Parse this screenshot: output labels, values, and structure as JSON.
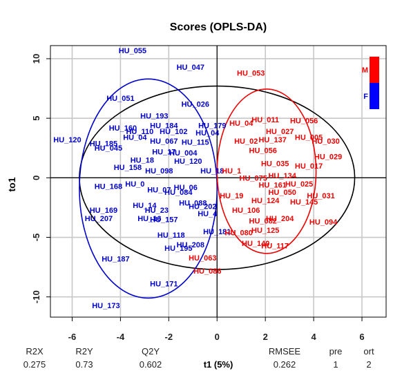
{
  "chart_data": {
    "type": "scatter",
    "title": "Scores (OPLS-DA)",
    "xlabel": "t1 (5%)",
    "ylabel": "to1",
    "xlim": [
      -6.9,
      7.0
    ],
    "ylim": [
      -11.7,
      11.1
    ],
    "x_ticks": [
      -6,
      -4,
      -2,
      0,
      2,
      4,
      6
    ],
    "y_ticks": [
      -10,
      -5,
      0,
      5,
      10
    ],
    "grid": true,
    "legend": [
      {
        "label": "M",
        "color": "#ff0000"
      },
      {
        "label": "F",
        "color": "#0000ff"
      }
    ],
    "series": [
      {
        "name": "F",
        "color": "#0000cd",
        "points": [
          {
            "label": "HU_055",
            "x": -3.5,
            "y": 10.7
          },
          {
            "label": "HU_047",
            "x": -1.1,
            "y": 9.3
          },
          {
            "label": "HU_051",
            "x": -4.0,
            "y": 6.7
          },
          {
            "label": "HU_026",
            "x": -0.9,
            "y": 6.2
          },
          {
            "label": "HU_193",
            "x": -2.6,
            "y": 5.2
          },
          {
            "label": "HU_184",
            "x": -2.2,
            "y": 4.4
          },
          {
            "label": "HU_160",
            "x": -3.9,
            "y": 4.2
          },
          {
            "label": "HU_110",
            "x": -3.2,
            "y": 3.9
          },
          {
            "label": "HU_102",
            "x": -1.8,
            "y": 3.9
          },
          {
            "label": "HU_179",
            "x": -0.2,
            "y": 4.4
          },
          {
            "label": "HU_04",
            "x": -0.4,
            "y": 3.8
          },
          {
            "label": "HU_120",
            "x": -6.2,
            "y": 3.2
          },
          {
            "label": "HU_185",
            "x": -4.7,
            "y": 2.9
          },
          {
            "label": "HU_04",
            "x": -3.4,
            "y": 3.4
          },
          {
            "label": "HU_067",
            "x": -2.2,
            "y": 3.1
          },
          {
            "label": "HU_115",
            "x": -0.9,
            "y": 3.0
          },
          {
            "label": "HU_045",
            "x": -4.5,
            "y": 2.5
          },
          {
            "label": "HU_17",
            "x": -2.2,
            "y": 2.2
          },
          {
            "label": "HU_004",
            "x": -1.4,
            "y": 2.1
          },
          {
            "label": "HU_18",
            "x": -3.1,
            "y": 1.5
          },
          {
            "label": "HU_120",
            "x": -1.2,
            "y": 1.4
          },
          {
            "label": "HU_158",
            "x": -3.7,
            "y": 0.9
          },
          {
            "label": "HU_098",
            "x": -2.4,
            "y": 0.6
          },
          {
            "label": "HU_18",
            "x": -0.2,
            "y": 0.6
          },
          {
            "label": "HU_168",
            "x": -4.5,
            "y": -0.7
          },
          {
            "label": "HU_0",
            "x": -3.4,
            "y": -0.5
          },
          {
            "label": "HU_07",
            "x": -2.4,
            "y": -1.0
          },
          {
            "label": "HU_084",
            "x": -1.6,
            "y": -1.2
          },
          {
            "label": "HU_06",
            "x": -1.3,
            "y": -0.8
          },
          {
            "label": "HU_088",
            "x": -1.0,
            "y": -2.1
          },
          {
            "label": "HU_14",
            "x": -3.0,
            "y": -2.3
          },
          {
            "label": "HU_23",
            "x": -2.5,
            "y": -2.7
          },
          {
            "label": "HU_202",
            "x": -0.6,
            "y": -2.4
          },
          {
            "label": "HU_169",
            "x": -4.7,
            "y": -2.7
          },
          {
            "label": "HU_207",
            "x": -4.9,
            "y": -3.4
          },
          {
            "label": "HU_157",
            "x": -2.2,
            "y": -3.5
          },
          {
            "label": "HU_16",
            "x": -2.8,
            "y": -3.4
          },
          {
            "label": "HU_4",
            "x": -0.4,
            "y": -3.0
          },
          {
            "label": "HU_118",
            "x": -1.9,
            "y": -4.8
          },
          {
            "label": "HU_181",
            "x": 0.0,
            "y": -4.5
          },
          {
            "label": "HU_208",
            "x": -1.1,
            "y": -5.6
          },
          {
            "label": "HU_195",
            "x": -1.6,
            "y": -5.9
          },
          {
            "label": "HU_187",
            "x": -4.2,
            "y": -6.8
          },
          {
            "label": "HU_171",
            "x": -2.2,
            "y": -8.9
          },
          {
            "label": "HU_173",
            "x": -4.6,
            "y": -10.7
          }
        ]
      },
      {
        "name": "M",
        "color": "#ee0000",
        "points": [
          {
            "label": "HU_053",
            "x": 1.4,
            "y": 8.8
          },
          {
            "label": "HU_011",
            "x": 2.0,
            "y": 4.9
          },
          {
            "label": "HU_04",
            "x": 1.0,
            "y": 4.6
          },
          {
            "label": "HU_056",
            "x": 3.6,
            "y": 4.8
          },
          {
            "label": "HU_027",
            "x": 2.6,
            "y": 3.9
          },
          {
            "label": "HU_005",
            "x": 3.8,
            "y": 3.4
          },
          {
            "label": "HU_030",
            "x": 4.5,
            "y": 3.1
          },
          {
            "label": "HU_137",
            "x": 2.3,
            "y": 3.2
          },
          {
            "label": "HU_02",
            "x": 1.2,
            "y": 3.1
          },
          {
            "label": "HU_056",
            "x": 1.9,
            "y": 2.3
          },
          {
            "label": "HU_029",
            "x": 4.6,
            "y": 1.8
          },
          {
            "label": "HU_035",
            "x": 2.4,
            "y": 1.2
          },
          {
            "label": "HU_017",
            "x": 3.8,
            "y": 1.0
          },
          {
            "label": "HU_1",
            "x": 0.6,
            "y": 0.6
          },
          {
            "label": "HU_134",
            "x": 2.7,
            "y": 0.2
          },
          {
            "label": "HU_025",
            "x": 3.4,
            "y": -0.5
          },
          {
            "label": "HU_031",
            "x": 4.3,
            "y": -1.5
          },
          {
            "label": "HU_145",
            "x": 3.6,
            "y": -2.0
          },
          {
            "label": "HU_050",
            "x": 2.7,
            "y": -1.2
          },
          {
            "label": "HU_124",
            "x": 2.0,
            "y": -1.9
          },
          {
            "label": "HU_094",
            "x": 4.4,
            "y": -3.7
          },
          {
            "label": "HU_204",
            "x": 2.6,
            "y": -3.4
          },
          {
            "label": "HU_082",
            "x": 1.9,
            "y": -3.6
          },
          {
            "label": "HU_106",
            "x": 1.2,
            "y": -2.7
          },
          {
            "label": "HU_125",
            "x": 2.0,
            "y": -4.4
          },
          {
            "label": "HU_080",
            "x": 0.9,
            "y": -4.6
          },
          {
            "label": "HU_140",
            "x": 1.6,
            "y": -5.5
          },
          {
            "label": "HU_117",
            "x": 2.4,
            "y": -5.7
          },
          {
            "label": "HU_063",
            "x": -0.6,
            "y": -6.7
          },
          {
            "label": "HU_086",
            "x": -0.4,
            "y": -7.8
          },
          {
            "label": "HU_19",
            "x": 0.6,
            "y": -1.5
          },
          {
            "label": "HU_075",
            "x": 1.5,
            "y": 0.0
          },
          {
            "label": "HU_161",
            "x": 2.3,
            "y": -0.6
          }
        ]
      }
    ],
    "ellipses": [
      {
        "group": "all",
        "color": "#000000",
        "cx": 0.0,
        "cy": 0.0,
        "rx": 5.7,
        "ry": 7.7
      },
      {
        "group": "F",
        "color": "#0000cd",
        "cx": -2.85,
        "cy": -0.9,
        "rx": 2.85,
        "ry": 9.2
      },
      {
        "group": "M",
        "color": "#ee0000",
        "cx": 2.05,
        "cy": 0.55,
        "rx": 2.05,
        "ry": 6.9
      }
    ],
    "stats": {
      "headers": [
        "R2X",
        "R2Y",
        "Q2Y",
        "RMSEE",
        "pre",
        "ort"
      ],
      "values": [
        "0.275",
        "0.73",
        "0.602",
        "0.262",
        "1",
        "2"
      ]
    }
  }
}
